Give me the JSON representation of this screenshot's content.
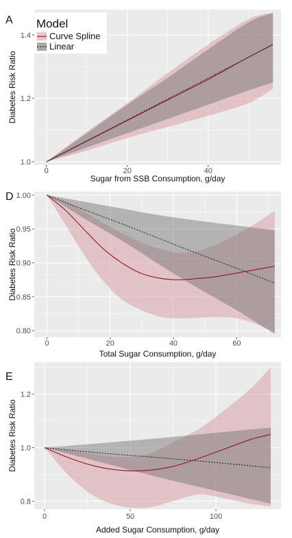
{
  "legend": {
    "title": "Model",
    "items": [
      {
        "label": "Curve Spline",
        "color": "#9e1b1b",
        "fill": "#d9a3aa"
      },
      {
        "label": "Linear",
        "color": "#222222",
        "fill": "#6f6f6f"
      }
    ]
  },
  "colors": {
    "panel_bg": "#ebebeb",
    "grid": "#ffffff",
    "spline_line": "#8b1a1a",
    "spline_band": "#d9a3aa",
    "linear_line": "#222222",
    "linear_band": "#6f6f6f"
  },
  "chart_data": [
    {
      "panel": "A",
      "type": "line",
      "xlabel": "Sugar from SSB Consumption, g/day",
      "ylabel": "Diabetes Risk Ratio",
      "xlim": [
        -3,
        58
      ],
      "ylim": [
        0.99,
        1.48
      ],
      "xticks": [
        0,
        20,
        40
      ],
      "yticks": [
        1.0,
        1.2,
        1.4
      ],
      "ytick_labels": [
        "1.0",
        "1.2",
        "1.4"
      ],
      "grid": true,
      "legend_position": "top-left",
      "series": [
        {
          "name": "Curve Spline",
          "x": [
            0,
            10,
            20,
            30,
            40,
            50,
            56
          ],
          "y": [
            1.0,
            1.065,
            1.13,
            1.195,
            1.26,
            1.33,
            1.37
          ],
          "lower": [
            1.0,
            1.035,
            1.075,
            1.11,
            1.145,
            1.185,
            1.23
          ],
          "upper": [
            1.0,
            1.095,
            1.185,
            1.28,
            1.37,
            1.45,
            1.47
          ]
        },
        {
          "name": "Linear",
          "x": [
            0,
            10,
            20,
            30,
            40,
            50,
            56
          ],
          "y": [
            1.0,
            1.066,
            1.132,
            1.198,
            1.264,
            1.33,
            1.37
          ],
          "lower": [
            1.0,
            1.045,
            1.09,
            1.135,
            1.18,
            1.225,
            1.25
          ],
          "upper": [
            1.0,
            1.09,
            1.18,
            1.265,
            1.355,
            1.44,
            1.47
          ]
        }
      ]
    },
    {
      "panel": "D",
      "type": "line",
      "xlabel": "Total Sugar Consumption, g/day",
      "ylabel": "Diabetes Risk Ratio",
      "xlim": [
        -4,
        74
      ],
      "ylim": [
        0.79,
        1.005
      ],
      "xticks": [
        0,
        20,
        40,
        60
      ],
      "yticks": [
        0.8,
        0.85,
        0.9,
        0.95,
        1.0
      ],
      "ytick_labels": [
        "0.80",
        "0.85",
        "0.90",
        "0.95",
        "1.00"
      ],
      "grid": true,
      "series": [
        {
          "name": "Curve Spline",
          "x": [
            0,
            6,
            12,
            18,
            24,
            30,
            36,
            42,
            48,
            54,
            60,
            66,
            72
          ],
          "y": [
            1.0,
            0.977,
            0.948,
            0.92,
            0.899,
            0.884,
            0.877,
            0.875,
            0.877,
            0.88,
            0.885,
            0.89,
            0.895
          ],
          "lower": [
            1.0,
            0.955,
            0.91,
            0.872,
            0.845,
            0.83,
            0.82,
            0.818,
            0.819,
            0.82,
            0.818,
            0.81,
            0.797
          ],
          "upper": [
            1.0,
            0.99,
            0.975,
            0.958,
            0.943,
            0.93,
            0.92,
            0.915,
            0.918,
            0.928,
            0.942,
            0.958,
            0.977
          ]
        },
        {
          "name": "Linear",
          "x": [
            0,
            12,
            24,
            36,
            48,
            60,
            72
          ],
          "y": [
            1.0,
            0.978,
            0.957,
            0.935,
            0.913,
            0.892,
            0.87
          ],
          "lower": [
            1.0,
            0.965,
            0.932,
            0.896,
            0.862,
            0.83,
            0.795
          ],
          "upper": [
            1.0,
            0.99,
            0.98,
            0.97,
            0.962,
            0.955,
            0.948
          ]
        }
      ]
    },
    {
      "panel": "E",
      "type": "line",
      "xlabel": "Added Sugar Consumption, g/day",
      "ylabel": "Diabetes Risk Ratio",
      "xlim": [
        -6,
        138
      ],
      "ylim": [
        0.77,
        1.32
      ],
      "xticks": [
        0,
        50,
        100
      ],
      "yticks": [
        0.8,
        1.0,
        1.2
      ],
      "ytick_labels": [
        "0.8",
        "1.0",
        "1.2"
      ],
      "grid": true,
      "series": [
        {
          "name": "Curve Spline",
          "x": [
            0,
            15,
            30,
            45,
            60,
            75,
            90,
            105,
            120,
            132
          ],
          "y": [
            1.0,
            0.96,
            0.93,
            0.915,
            0.915,
            0.93,
            0.96,
            0.995,
            1.03,
            1.05
          ],
          "lower": [
            1.0,
            0.89,
            0.815,
            0.78,
            0.775,
            0.8,
            0.825,
            0.81,
            0.79,
            0.78
          ],
          "upper": [
            1.0,
            0.99,
            0.975,
            0.965,
            0.975,
            1.02,
            1.07,
            1.14,
            1.22,
            1.3
          ]
        },
        {
          "name": "Linear",
          "x": [
            0,
            33,
            66,
            99,
            132
          ],
          "y": [
            1.0,
            0.98,
            0.963,
            0.945,
            0.925
          ],
          "lower": [
            1.0,
            0.945,
            0.89,
            0.84,
            0.79
          ],
          "upper": [
            1.0,
            1.017,
            1.035,
            1.055,
            1.075
          ]
        }
      ]
    }
  ]
}
